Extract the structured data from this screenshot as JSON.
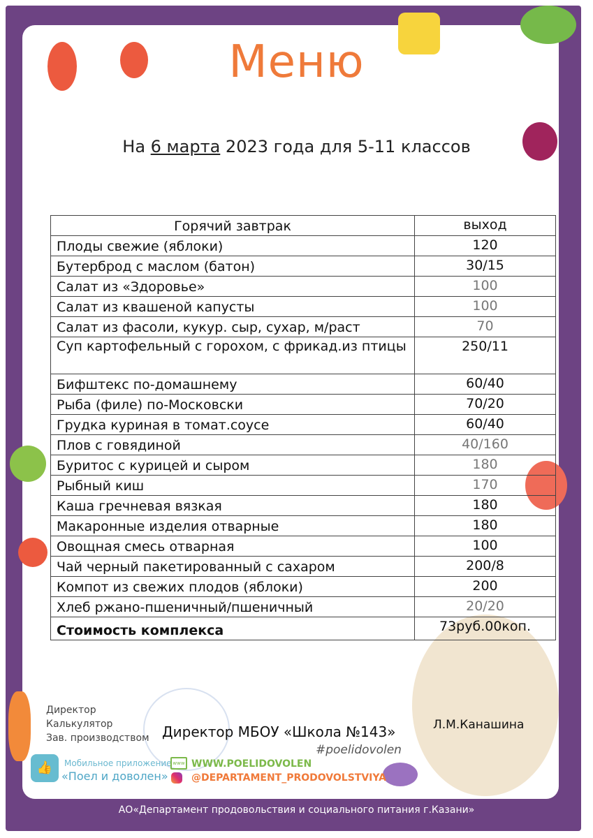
{
  "header": {
    "title": "Меню",
    "subtitle_prefix": "На ",
    "subtitle_date": "6 марта",
    "subtitle_suffix": " 2023 года для 5-11 классов"
  },
  "table": {
    "headers": [
      "Горячий завтрак",
      "выход"
    ],
    "rows": [
      {
        "name": "Плоды свежие (яблоки)",
        "yield": "120"
      },
      {
        "name": "Бутерброд с маслом (батон)",
        "yield": "30/15"
      },
      {
        "name": "Салат из «Здоровье»",
        "yield": "100"
      },
      {
        "name": "Салат из квашеной капусты",
        "yield": "100"
      },
      {
        "name": "Салат из фасоли, кукур.  сыр, сухар, м/раст",
        "yield": "70"
      },
      {
        "name": "Суп картофельный с горохом, с фрикад.из птицы",
        "yield": "250/11"
      },
      {
        "name": "Бифштекс по-домашнему",
        "yield": "60/40"
      },
      {
        "name": "Рыба (филе) по-Московски",
        "yield": "70/20"
      },
      {
        "name": "Грудка куриная в томат.соусе",
        "yield": "60/40"
      },
      {
        "name": "Плов с говядиной",
        "yield": "40/160"
      },
      {
        "name": "Буритос с курицей и сыром",
        "yield": "180"
      },
      {
        "name": "Рыбный киш",
        "yield": "170"
      },
      {
        "name": "Каша гречневая вязкая",
        "yield": "180"
      },
      {
        "name": "Макаронные изделия отварные",
        "yield": "180"
      },
      {
        "name": "Овощная смесь отварная",
        "yield": "100"
      },
      {
        "name": "Чай черный пакетированный с сахаром",
        "yield": "200/8"
      },
      {
        "name": "Компот из свежих плодов (яблоки)",
        "yield": "200"
      },
      {
        "name": "Хлеб ржано-пшеничный/пшеничный",
        "yield": "20/20"
      }
    ],
    "total": {
      "label": "Стоимость комплекса",
      "value": "73руб.00коп."
    }
  },
  "signatures": {
    "director": "Директор",
    "calculator": "Калькулятор",
    "manager": "Зав. производством",
    "director_line": "Директор МБОУ «Школа №143»",
    "signer": "Л.М.Канашина",
    "hashtag": "#poelidovolen"
  },
  "promo": {
    "app_line1": "Мобильное приложение",
    "app_line2": "«Поел и доволен»",
    "website": "WWW.POELIDOVOLEN",
    "instagram": "@DEPARTAMENT_PRODOVOLSTVIYA"
  },
  "footer": {
    "text": "АО«Департамент продовольствия и социального питания г.Казани»"
  },
  "colors": {
    "frame": "#6d4383",
    "title": "#ef7a3a",
    "website": "#7cb94a",
    "instagram": "#f07a3a",
    "app": "#67bcd0"
  }
}
